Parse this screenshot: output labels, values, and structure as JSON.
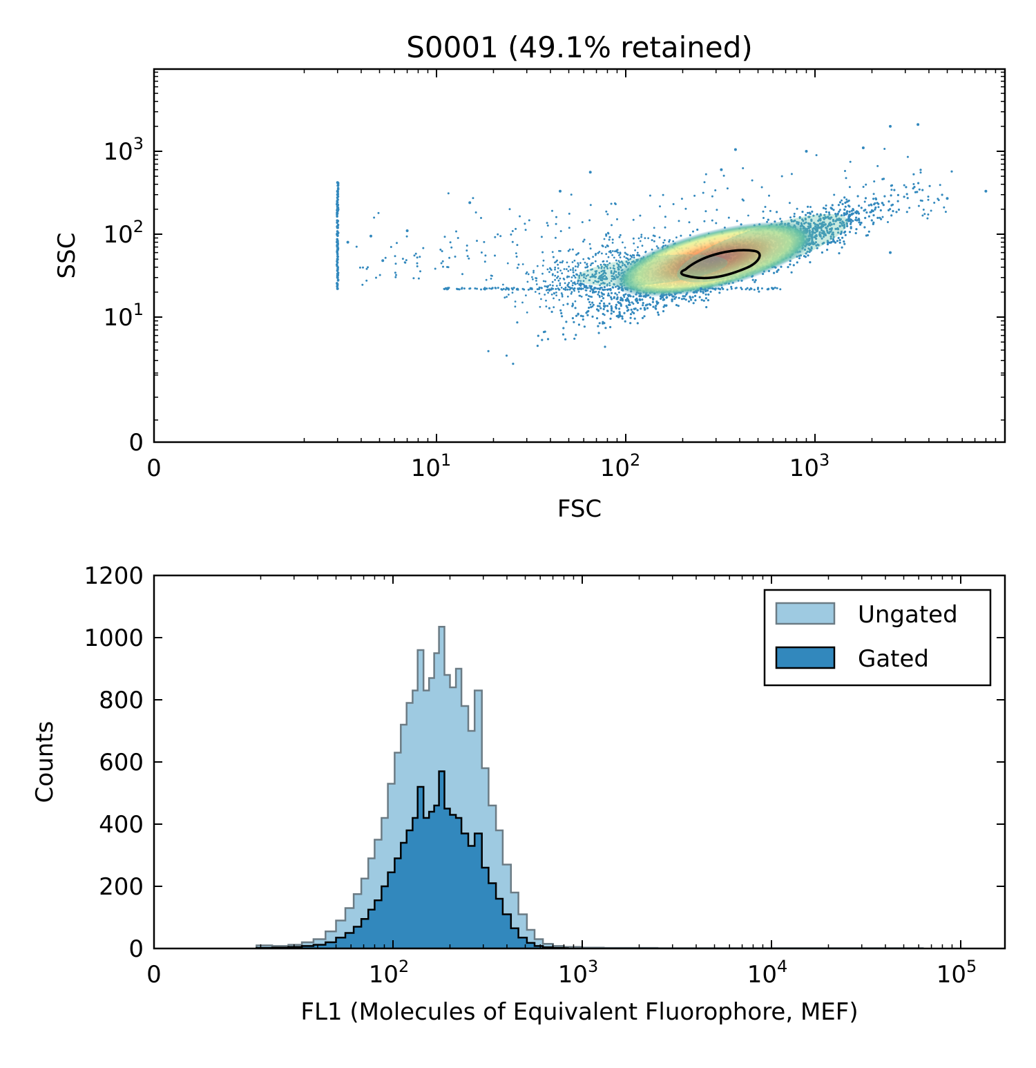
{
  "chart_data": [
    {
      "type": "scatter",
      "title": "S0001 (49.1% retained)",
      "xlabel": "FSC",
      "ylabel": "SSC",
      "x_scale": "log (0 shown at left edge)",
      "y_scale": "log (0 shown at bottom edge)",
      "xlim": [
        0,
        8000
      ],
      "ylim": [
        0,
        9000
      ],
      "x_tick_labels": [
        {
          "base": "0",
          "exp": ""
        },
        {
          "base": "10",
          "exp": "1"
        },
        {
          "base": "10",
          "exp": "2"
        },
        {
          "base": "10",
          "exp": "3"
        }
      ],
      "y_tick_labels": [
        {
          "base": "0",
          "exp": ""
        },
        {
          "base": "10",
          "exp": "1"
        },
        {
          "base": "10",
          "exp": "2"
        },
        {
          "base": "10",
          "exp": "3"
        }
      ],
      "density_colormap": "spectral (blue low → red high)",
      "point_color": "#3288bd",
      "gate_outline_color": "#000000",
      "gate_center": {
        "fsc": 270,
        "ssc": 48
      },
      "points_sample": [
        {
          "fsc": 3,
          "ssc": 420
        },
        {
          "fsc": 3,
          "ssc": 300
        },
        {
          "fsc": 3,
          "ssc": 200
        },
        {
          "fsc": 3,
          "ssc": 120
        },
        {
          "fsc": 3,
          "ssc": 80
        },
        {
          "fsc": 3,
          "ssc": 50
        },
        {
          "fsc": 3,
          "ssc": 30
        },
        {
          "fsc": 3,
          "ssc": 22
        },
        {
          "fsc": 3.4,
          "ssc": 80
        },
        {
          "fsc": 4.5,
          "ssc": 95
        },
        {
          "fsc": 5.2,
          "ssc": 48
        },
        {
          "fsc": 7,
          "ssc": 110
        },
        {
          "fsc": 15,
          "ssc": 240
        },
        {
          "fsc": 45,
          "ssc": 330
        },
        {
          "fsc": 65,
          "ssc": 560
        },
        {
          "fsc": 320,
          "ssc": 600
        },
        {
          "fsc": 380,
          "ssc": 1050
        },
        {
          "fsc": 900,
          "ssc": 1000
        },
        {
          "fsc": 1800,
          "ssc": 1100
        },
        {
          "fsc": 2500,
          "ssc": 2000
        },
        {
          "fsc": 3500,
          "ssc": 2100
        },
        {
          "fsc": 5000,
          "ssc": 270
        },
        {
          "fsc": 8000,
          "ssc": 330
        },
        {
          "fsc": 2500,
          "ssc": 60
        },
        {
          "fsc": 600,
          "ssc": 22
        },
        {
          "fsc": 250,
          "ssc": 22
        }
      ]
    },
    {
      "type": "histogram",
      "xlabel": "FL1 (Molecules of Equivalent Fluorophore, MEF)",
      "ylabel": "Counts",
      "x_scale": "log (0 shown at left edge)",
      "xlim": [
        0,
        170000
      ],
      "ylim": [
        0,
        1200
      ],
      "y_ticks": [
        "0",
        "200",
        "400",
        "600",
        "800",
        "1000",
        "1200"
      ],
      "x_tick_labels": [
        {
          "base": "0",
          "exp": ""
        },
        {
          "base": "10",
          "exp": "2"
        },
        {
          "base": "10",
          "exp": "3"
        },
        {
          "base": "10",
          "exp": "4"
        },
        {
          "base": "10",
          "exp": "5"
        }
      ],
      "legend_position": "top-right",
      "series": [
        {
          "name": "Ungated",
          "fill_color": "#9ecae1",
          "edge_color": "#6b7b84",
          "bins": [
            {
              "x": 19,
              "y": 10
            },
            {
              "x": 23,
              "y": 8
            },
            {
              "x": 28,
              "y": 12
            },
            {
              "x": 33,
              "y": 20
            },
            {
              "x": 38,
              "y": 30
            },
            {
              "x": 44,
              "y": 55
            },
            {
              "x": 50,
              "y": 90
            },
            {
              "x": 56,
              "y": 130
            },
            {
              "x": 62,
              "y": 175
            },
            {
              "x": 68,
              "y": 225
            },
            {
              "x": 74,
              "y": 290
            },
            {
              "x": 80,
              "y": 350
            },
            {
              "x": 87,
              "y": 420
            },
            {
              "x": 94,
              "y": 530
            },
            {
              "x": 102,
              "y": 630
            },
            {
              "x": 110,
              "y": 720
            },
            {
              "x": 118,
              "y": 790
            },
            {
              "x": 127,
              "y": 830
            },
            {
              "x": 135,
              "y": 960
            },
            {
              "x": 145,
              "y": 830
            },
            {
              "x": 155,
              "y": 870
            },
            {
              "x": 165,
              "y": 950
            },
            {
              "x": 175,
              "y": 1035
            },
            {
              "x": 187,
              "y": 880
            },
            {
              "x": 200,
              "y": 840
            },
            {
              "x": 215,
              "y": 900
            },
            {
              "x": 230,
              "y": 780
            },
            {
              "x": 250,
              "y": 700
            },
            {
              "x": 270,
              "y": 830
            },
            {
              "x": 295,
              "y": 580
            },
            {
              "x": 320,
              "y": 460
            },
            {
              "x": 350,
              "y": 380
            },
            {
              "x": 380,
              "y": 270
            },
            {
              "x": 420,
              "y": 180
            },
            {
              "x": 460,
              "y": 110
            },
            {
              "x": 510,
              "y": 60
            },
            {
              "x": 560,
              "y": 30
            },
            {
              "x": 620,
              "y": 15
            },
            {
              "x": 700,
              "y": 8
            },
            {
              "x": 800,
              "y": 5
            },
            {
              "x": 1000,
              "y": 3
            },
            {
              "x": 1300,
              "y": 2
            },
            {
              "x": 1700,
              "y": 2
            },
            {
              "x": 2500,
              "y": 1
            },
            {
              "x": 4000,
              "y": 1
            },
            {
              "x": 8000,
              "y": 1
            },
            {
              "x": 15000,
              "y": 1
            },
            {
              "x": 30000,
              "y": 1
            },
            {
              "x": 60000,
              "y": 1
            }
          ]
        },
        {
          "name": "Gated",
          "fill_color": "#3288bd",
          "edge_color": "#000000",
          "bins": [
            {
              "x": 19,
              "y": 2
            },
            {
              "x": 23,
              "y": 3
            },
            {
              "x": 28,
              "y": 5
            },
            {
              "x": 33,
              "y": 8
            },
            {
              "x": 38,
              "y": 12
            },
            {
              "x": 44,
              "y": 20
            },
            {
              "x": 50,
              "y": 35
            },
            {
              "x": 56,
              "y": 50
            },
            {
              "x": 62,
              "y": 70
            },
            {
              "x": 68,
              "y": 95
            },
            {
              "x": 74,
              "y": 125
            },
            {
              "x": 80,
              "y": 155
            },
            {
              "x": 87,
              "y": 200
            },
            {
              "x": 94,
              "y": 245
            },
            {
              "x": 102,
              "y": 290
            },
            {
              "x": 110,
              "y": 340
            },
            {
              "x": 118,
              "y": 380
            },
            {
              "x": 127,
              "y": 420
            },
            {
              "x": 135,
              "y": 520
            },
            {
              "x": 145,
              "y": 420
            },
            {
              "x": 155,
              "y": 440
            },
            {
              "x": 165,
              "y": 460
            },
            {
              "x": 175,
              "y": 570
            },
            {
              "x": 187,
              "y": 450
            },
            {
              "x": 200,
              "y": 430
            },
            {
              "x": 215,
              "y": 420
            },
            {
              "x": 230,
              "y": 370
            },
            {
              "x": 250,
              "y": 330
            },
            {
              "x": 270,
              "y": 370
            },
            {
              "x": 295,
              "y": 260
            },
            {
              "x": 320,
              "y": 210
            },
            {
              "x": 350,
              "y": 160
            },
            {
              "x": 380,
              "y": 110
            },
            {
              "x": 420,
              "y": 65
            },
            {
              "x": 460,
              "y": 35
            },
            {
              "x": 510,
              "y": 18
            },
            {
              "x": 560,
              "y": 8
            },
            {
              "x": 620,
              "y": 4
            },
            {
              "x": 700,
              "y": 2
            },
            {
              "x": 800,
              "y": 1
            }
          ]
        }
      ]
    }
  ]
}
